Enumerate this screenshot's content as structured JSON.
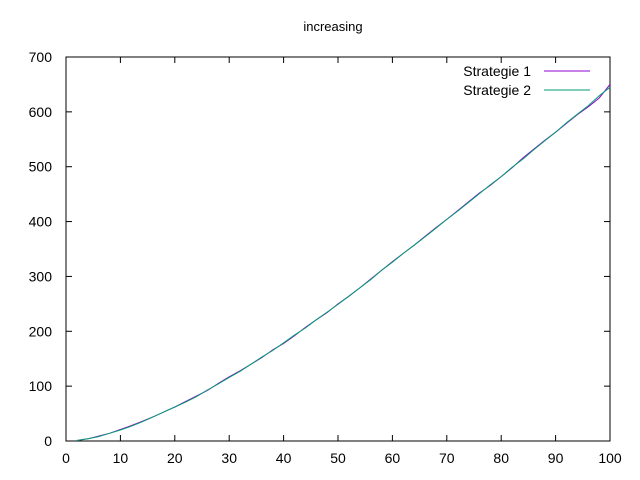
{
  "chart_data": {
    "type": "line",
    "title": "increasing",
    "xlabel": "",
    "ylabel": "",
    "xlim": [
      0,
      100
    ],
    "ylim": [
      0,
      700
    ],
    "xticks": [
      0,
      10,
      20,
      30,
      40,
      50,
      60,
      70,
      80,
      90,
      100
    ],
    "yticks": [
      0,
      100,
      200,
      300,
      400,
      500,
      600,
      700
    ],
    "grid": false,
    "legend_position": "top-right",
    "x": [
      2,
      4,
      6,
      8,
      10,
      12,
      14,
      16,
      18,
      20,
      22,
      24,
      26,
      28,
      30,
      32,
      34,
      36,
      38,
      40,
      42,
      44,
      46,
      48,
      50,
      52,
      54,
      56,
      58,
      60,
      62,
      64,
      66,
      68,
      70,
      72,
      74,
      76,
      78,
      80,
      82,
      84,
      86,
      88,
      90,
      92,
      94,
      96,
      98,
      100
    ],
    "series": [
      {
        "name": "Strategie 1",
        "color": "#9400d3",
        "values": [
          1,
          4,
          9,
          14,
          21,
          28,
          36,
          44,
          53,
          62,
          72,
          82,
          92,
          105,
          117,
          128,
          140,
          152,
          166,
          178,
          192,
          207,
          221,
          234,
          250,
          264,
          279,
          295,
          311,
          327,
          342,
          357,
          373,
          389,
          404,
          420,
          436,
          452,
          466,
          482,
          498,
          516,
          532,
          548,
          563,
          579,
          595,
          609,
          625,
          650
        ]
      },
      {
        "name": "Strategie 2",
        "color": "#009e73",
        "values": [
          1,
          4,
          8,
          14,
          20,
          27,
          35,
          44,
          53,
          62,
          71,
          81,
          93,
          104,
          116,
          127,
          140,
          153,
          165,
          179,
          193,
          206,
          221,
          235,
          249,
          264,
          279,
          294,
          311,
          326,
          342,
          357,
          372,
          388,
          404,
          419,
          435,
          451,
          467,
          482,
          499,
          514,
          531,
          547,
          563,
          580,
          596,
          611,
          629,
          645
        ]
      }
    ]
  }
}
